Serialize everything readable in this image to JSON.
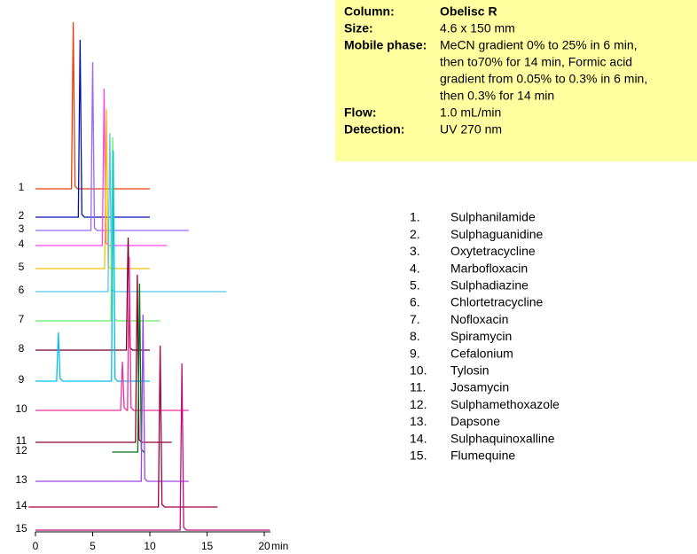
{
  "chart_data": {
    "type": "chromatogram",
    "x_label": "min",
    "xlim": [
      0,
      20
    ],
    "xticks": [
      0,
      5,
      10,
      15,
      20
    ],
    "series": [
      {
        "label": "1",
        "color": "#e8400c",
        "x": [
          0,
          10
        ],
        "peaks": [
          3.3
        ]
      },
      {
        "label": "2",
        "color": "#0010b0",
        "x": [
          0,
          10
        ],
        "peaks": [
          3.9
        ]
      },
      {
        "label": "3",
        "color": "#9966ff",
        "x": [
          0,
          13.4
        ],
        "peaks": [
          5.0
        ]
      },
      {
        "label": "4",
        "color": "#ff44ee",
        "x": [
          0,
          11.5
        ],
        "peaks": [
          6.0
        ]
      },
      {
        "label": "5",
        "color": "#f0c000",
        "x": [
          0,
          10
        ],
        "peaks": [
          6.2
        ]
      },
      {
        "label": "6",
        "color": "#55c8f0",
        "x": [
          0,
          16.7
        ],
        "peaks": [
          6.5
        ]
      },
      {
        "label": "7",
        "color": "#66ee66",
        "x": [
          0,
          10.9
        ],
        "peaks": [
          6.75
        ]
      },
      {
        "label": "8",
        "color": "#700030",
        "x": [
          0,
          10
        ],
        "peaks": [
          8.1
        ]
      },
      {
        "label": "9",
        "color": "#00c0f0",
        "x": [
          0,
          10
        ],
        "peaks": [
          2.0,
          6.8
        ]
      },
      {
        "label": "10",
        "color": "#f0309a",
        "x": [
          0,
          13.4
        ],
        "peaks": [
          7.6,
          8.2
        ]
      },
      {
        "label": "11",
        "color": "#900030",
        "x": [
          0,
          11.9
        ],
        "peaks": [
          8.9
        ]
      },
      {
        "label": "12",
        "color": "#007010",
        "x": [
          6.7,
          9.4
        ],
        "peaks": [
          9.1
        ]
      },
      {
        "label": "13",
        "color": "#9944ee",
        "x": [
          0,
          13.4
        ],
        "peaks": [
          9.4
        ]
      },
      {
        "label": "14",
        "color": "#a00040",
        "x": [
          -0.6,
          15.9
        ],
        "peaks": [
          10.9
        ]
      },
      {
        "label": "15",
        "color": "#c01080",
        "x": [
          0,
          20.5
        ],
        "peaks": [
          12.8
        ]
      }
    ]
  },
  "info": [
    {
      "label": "Column:",
      "lines": [
        "Obelisc R"
      ]
    },
    {
      "label": "Size:",
      "lines": [
        "4.6 x 150 mm"
      ]
    },
    {
      "label": "Mobile phase:",
      "lines": [
        "MeCN gradient 0% to 25% in 6 min,",
        "then to70% for 14 min, Formic acid",
        "gradient from 0.05% to 0.3% in 6 min,",
        "then 0.3% for 14 min"
      ]
    },
    {
      "label": "Flow:",
      "lines": [
        "1.0 mL/min"
      ]
    },
    {
      "label": "Detection:",
      "lines": [
        "UV 270 nm"
      ]
    }
  ],
  "compounds": [
    {
      "number": "1.",
      "name": "Sulphanilamide"
    },
    {
      "number": "2.",
      "name": "Sulphaguanidine"
    },
    {
      "number": "3.",
      "name": "Oxytetracycline"
    },
    {
      "number": "4.",
      "name": "Marbofloxacin"
    },
    {
      "number": "5.",
      "name": "Sulphadiazine"
    },
    {
      "number": "6.",
      "name": "Chlortetracycline"
    },
    {
      "number": "7.",
      "name": "Nofloxacin"
    },
    {
      "number": "8.",
      "name": "Spiramycin"
    },
    {
      "number": "9.",
      "name": "Cefalonium"
    },
    {
      "number": "10.",
      "name": "Tylosin"
    },
    {
      "number": "11.",
      "name": "Josamycin"
    },
    {
      "number": "12.",
      "name": "Sulphamethoxazole"
    },
    {
      "number": "13.",
      "name": "Dapsone"
    },
    {
      "number": "14.",
      "name": "Sulphaquinoxalline"
    },
    {
      "number": "15.",
      "name": "Flumequine"
    }
  ]
}
